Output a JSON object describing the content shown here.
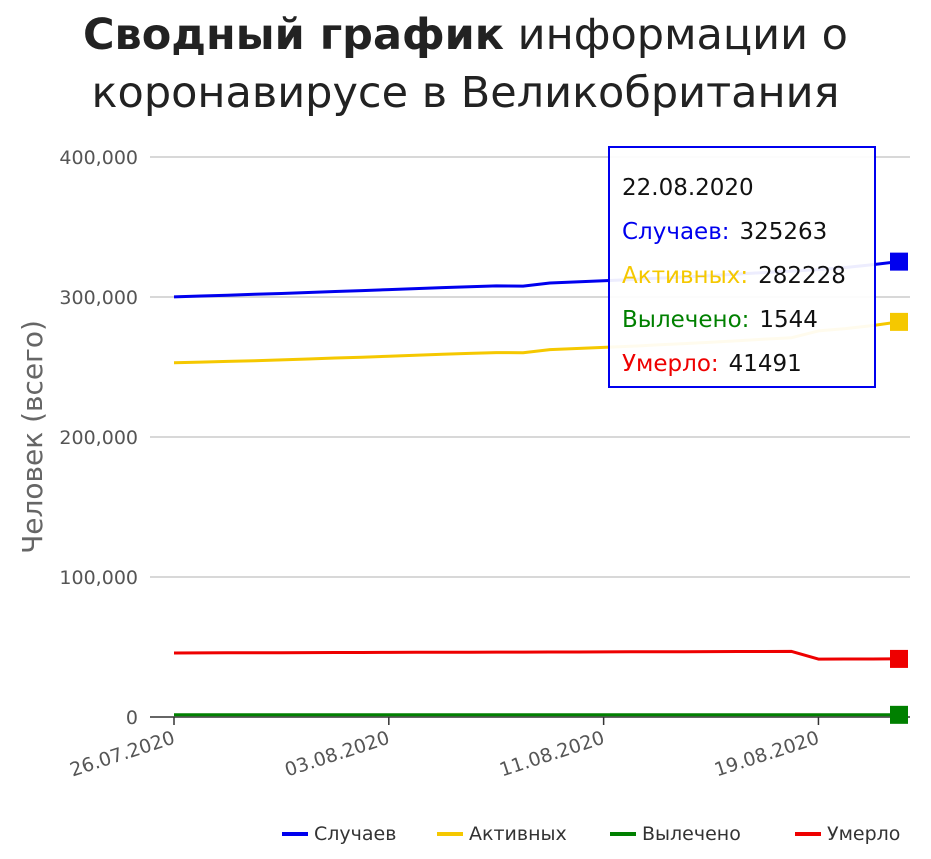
{
  "title": {
    "bold": "Сводный график",
    "rest": " информации о коронавирусе в Великобритания"
  },
  "chart_data": {
    "type": "line",
    "ylabel": "Человек (всего)",
    "xlabel": "",
    "ylim": [
      0,
      400000
    ],
    "y_ticks": [
      {
        "value": 0,
        "label": "0"
      },
      {
        "value": 100000,
        "label": "100,000"
      },
      {
        "value": 200000,
        "label": "200,000"
      },
      {
        "value": 300000,
        "label": "300,000"
      },
      {
        "value": 400000,
        "label": "400,000"
      }
    ],
    "x_range": [
      "2020-07-26",
      "2020-08-22"
    ],
    "x_ticks": [
      "26.07.2020",
      "03.08.2020",
      "11.08.2020",
      "19.08.2020"
    ],
    "x_tick_dates": [
      "2020-07-26",
      "2020-08-03",
      "2020-08-11",
      "2020-08-19"
    ],
    "grid": true,
    "legend_position": "bottom-right",
    "x": [
      "2020-07-26",
      "2020-07-27",
      "2020-07-28",
      "2020-07-29",
      "2020-07-30",
      "2020-07-31",
      "2020-08-01",
      "2020-08-02",
      "2020-08-03",
      "2020-08-04",
      "2020-08-05",
      "2020-08-06",
      "2020-08-07",
      "2020-08-08",
      "2020-08-09",
      "2020-08-10",
      "2020-08-11",
      "2020-08-12",
      "2020-08-13",
      "2020-08-14",
      "2020-08-15",
      "2020-08-16",
      "2020-08-17",
      "2020-08-18",
      "2020-08-19",
      "2020-08-20",
      "2020-08-21",
      "2020-08-22"
    ],
    "series": [
      {
        "name": "Случаев",
        "color": "#0000ee",
        "values": [
          300100,
          300700,
          301300,
          301900,
          302500,
          303200,
          303900,
          304600,
          305300,
          306000,
          306700,
          307300,
          307900,
          307800,
          310000,
          310800,
          311600,
          312400,
          313400,
          314300,
          315300,
          316400,
          317500,
          318500,
          319600,
          321100,
          323100,
          325263
        ]
      },
      {
        "name": "Активных",
        "color": "#f5c800",
        "values": [
          253000,
          253500,
          254000,
          254500,
          255100,
          255700,
          256400,
          257000,
          257700,
          258400,
          259100,
          259700,
          260300,
          260200,
          262400,
          263200,
          264000,
          264800,
          265800,
          266700,
          267700,
          268800,
          269900,
          270900,
          275800,
          277400,
          279600,
          282228
        ]
      },
      {
        "name": "Вылечено",
        "color": "#008000",
        "values": [
          1544,
          1544,
          1544,
          1544,
          1544,
          1544,
          1544,
          1544,
          1544,
          1544,
          1544,
          1544,
          1544,
          1544,
          1544,
          1544,
          1544,
          1544,
          1544,
          1544,
          1544,
          1544,
          1544,
          1544,
          1544,
          1544,
          1544,
          1544
        ]
      },
      {
        "name": "Умерло",
        "color": "#ee0000",
        "values": [
          45750,
          45800,
          45850,
          45900,
          45950,
          46000,
          46050,
          46100,
          46150,
          46200,
          46250,
          46300,
          46350,
          46350,
          46400,
          46450,
          46500,
          46550,
          46600,
          46650,
          46700,
          46750,
          46800,
          46850,
          41350,
          41400,
          41450,
          41491
        ]
      }
    ]
  },
  "tooltip": {
    "date": "22.08.2020",
    "rows": [
      {
        "label": "Случаев:",
        "value": "325263",
        "color": "#0000ee"
      },
      {
        "label": "Активных:",
        "value": "282228",
        "color": "#f5c800"
      },
      {
        "label": "Вылечено:",
        "value": "1544",
        "color": "#008000"
      },
      {
        "label": "Умерло:",
        "value": "41491",
        "color": "#ee0000"
      }
    ]
  }
}
